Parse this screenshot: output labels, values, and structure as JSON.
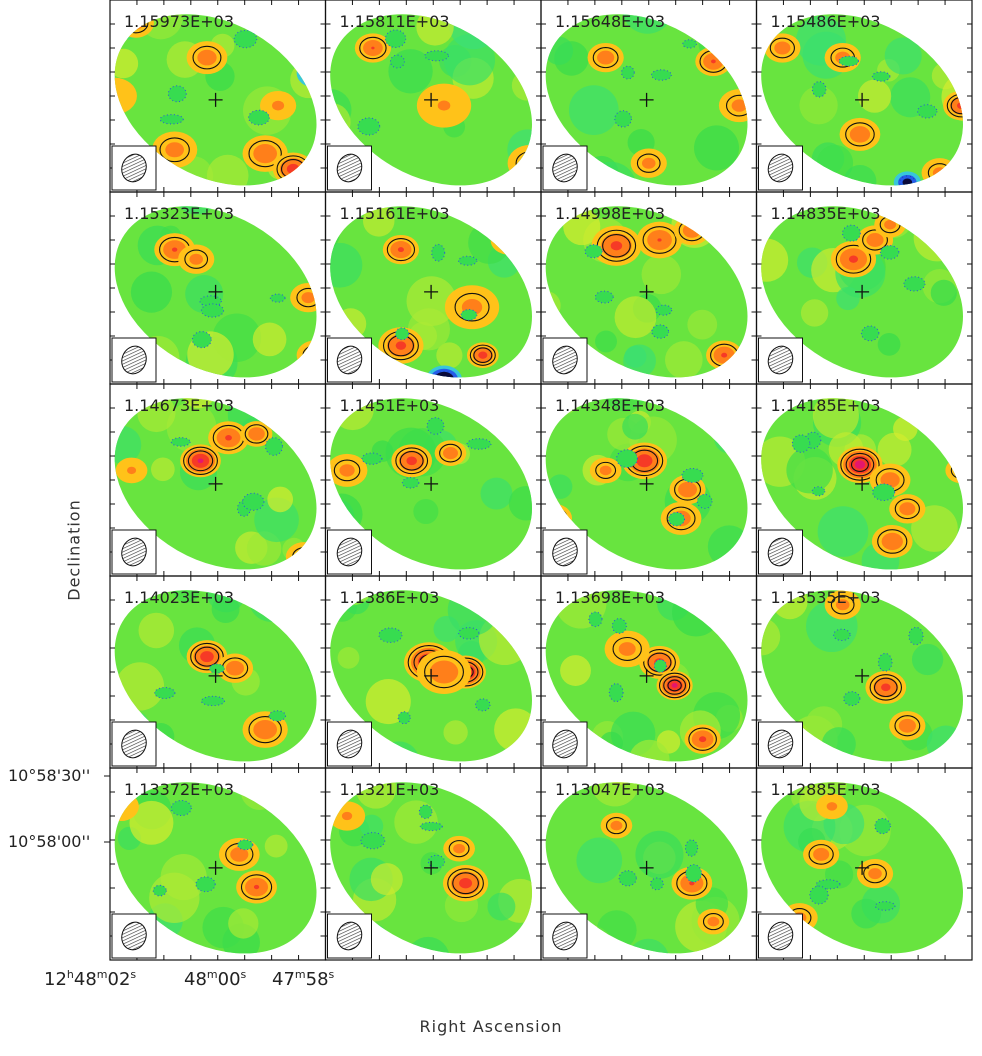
{
  "chart_data": {
    "type": "heatmap",
    "xlabel": "Right Ascension",
    "ylabel": "Declination",
    "grid_layout": {
      "rows": 5,
      "cols": 4
    },
    "x_tick_labels": [
      {
        "h": "12",
        "hu": "h",
        "m": "48",
        "mu": "m",
        "s": "02",
        "su": "s"
      },
      {
        "h": "",
        "hu": "",
        "m": "48",
        "mu": "m",
        "s": "00",
        "su": "s"
      },
      {
        "h": "",
        "hu": "",
        "m": "47",
        "mu": "m",
        "s": "58",
        "su": "s"
      }
    ],
    "y_tick_labels": [
      "10°58'30''",
      "10°58'00''"
    ],
    "colorscale": [
      "#0a0a3a",
      "#2346e6",
      "#2fb0f0",
      "#46e6b8",
      "#36dc4c",
      "#74e63c",
      "#d8ec2e",
      "#ffd21a",
      "#ff9418",
      "#ff4a1e",
      "#e0143a",
      "#f01ed6",
      "#ffffff"
    ],
    "panels": [
      {
        "label": "1.15973E+03",
        "blobs": [
          [
            0.72,
            0.8,
            1.5,
            0.1
          ],
          [
            0.85,
            0.88,
            2.3,
            0.09
          ],
          [
            0.45,
            0.3,
            1.3,
            0.09
          ],
          [
            0.3,
            0.78,
            1.1,
            0.1
          ],
          [
            0.02,
            0.5,
            0.6,
            0.1
          ],
          [
            0.95,
            0.38,
            -3.2,
            0.08
          ],
          [
            0.78,
            0.55,
            0.9,
            0.08
          ],
          [
            0.12,
            0.12,
            1.2,
            0.08
          ]
        ]
      },
      {
        "label": "1.15811E+03",
        "blobs": [
          [
            0.22,
            0.25,
            1.6,
            0.08
          ],
          [
            0.55,
            0.55,
            0.7,
            0.12
          ],
          [
            0.95,
            0.85,
            1.0,
            0.1
          ]
        ]
      },
      {
        "label": "1.15648E+03",
        "blobs": [
          [
            0.3,
            0.3,
            1.3,
            0.08
          ],
          [
            0.8,
            0.32,
            1.7,
            0.08
          ],
          [
            0.92,
            0.55,
            1.0,
            0.09
          ],
          [
            0.5,
            0.85,
            1.0,
            0.08
          ]
        ]
      },
      {
        "label": "1.15486E+03",
        "blobs": [
          [
            0.12,
            0.25,
            1.2,
            0.08
          ],
          [
            0.4,
            0.3,
            1.1,
            0.08
          ],
          [
            0.48,
            0.7,
            1.4,
            0.09
          ],
          [
            0.95,
            0.55,
            2.0,
            0.08
          ],
          [
            0.85,
            0.9,
            1.0,
            0.08
          ],
          [
            0.7,
            0.95,
            -2.5,
            0.06
          ]
        ]
      },
      {
        "label": "1.15323E+03",
        "blobs": [
          [
            0.3,
            0.3,
            1.7,
            0.09
          ],
          [
            0.4,
            0.35,
            1.0,
            0.08
          ],
          [
            0.92,
            0.55,
            1.0,
            0.08
          ],
          [
            0.95,
            0.85,
            1.1,
            0.08
          ]
        ]
      },
      {
        "label": "1.15161E+03",
        "blobs": [
          [
            0.35,
            0.3,
            1.8,
            0.08
          ],
          [
            0.35,
            0.8,
            2.0,
            0.1
          ],
          [
            0.68,
            0.6,
            1.0,
            0.12
          ],
          [
            0.73,
            0.85,
            2.2,
            0.07
          ],
          [
            0.55,
            0.98,
            -4.0,
            0.08
          ],
          [
            0.85,
            0.25,
            1.0,
            0.08
          ]
        ]
      },
      {
        "label": "1.14998E+03",
        "blobs": [
          [
            0.35,
            0.28,
            2.0,
            0.11
          ],
          [
            0.55,
            0.25,
            1.6,
            0.1
          ],
          [
            0.7,
            0.2,
            1.4,
            0.08
          ],
          [
            0.85,
            0.85,
            1.8,
            0.08
          ]
        ]
      },
      {
        "label": "1.14835E+03",
        "blobs": [
          [
            0.45,
            0.35,
            1.9,
            0.1
          ],
          [
            0.55,
            0.25,
            1.3,
            0.08
          ],
          [
            0.62,
            0.17,
            1.0,
            0.07
          ]
        ]
      },
      {
        "label": "1.14673E+03",
        "blobs": [
          [
            0.42,
            0.4,
            2.9,
            0.09
          ],
          [
            0.55,
            0.28,
            1.8,
            0.09
          ],
          [
            0.68,
            0.26,
            1.5,
            0.07
          ],
          [
            0.1,
            0.45,
            0.8,
            0.07
          ],
          [
            0.9,
            0.9,
            1.0,
            0.08
          ]
        ]
      },
      {
        "label": "1.1451E+03",
        "blobs": [
          [
            0.4,
            0.4,
            2.1,
            0.09
          ],
          [
            0.58,
            0.36,
            1.3,
            0.07
          ],
          [
            0.1,
            0.45,
            1.0,
            0.09
          ]
        ]
      },
      {
        "label": "1.14348E+03",
        "blobs": [
          [
            0.48,
            0.4,
            2.5,
            0.1
          ],
          [
            0.68,
            0.55,
            1.5,
            0.08
          ],
          [
            0.65,
            0.7,
            1.3,
            0.09
          ],
          [
            0.06,
            0.7,
            1.6,
            0.08
          ],
          [
            0.3,
            0.45,
            1.0,
            0.07
          ]
        ]
      },
      {
        "label": "1.14185E+03",
        "blobs": [
          [
            0.48,
            0.42,
            3.3,
            0.1
          ],
          [
            0.62,
            0.5,
            1.3,
            0.09
          ],
          [
            0.7,
            0.65,
            1.2,
            0.08
          ],
          [
            0.63,
            0.82,
            1.5,
            0.09
          ],
          [
            0.95,
            0.45,
            1.0,
            0.07
          ]
        ]
      },
      {
        "label": "1.14023E+03",
        "blobs": [
          [
            0.45,
            0.42,
            2.4,
            0.09
          ],
          [
            0.58,
            0.48,
            1.4,
            0.08
          ],
          [
            0.72,
            0.8,
            1.5,
            0.1
          ],
          [
            0.85,
            0.08,
            1.0,
            0.06
          ]
        ]
      },
      {
        "label": "1.1386E+03",
        "blobs": [
          [
            0.48,
            0.45,
            3.0,
            0.11
          ],
          [
            0.65,
            0.5,
            3.3,
            0.09
          ],
          [
            0.55,
            0.5,
            1.5,
            0.12
          ]
        ]
      },
      {
        "label": "1.13698E+03",
        "blobs": [
          [
            0.55,
            0.45,
            2.1,
            0.09
          ],
          [
            0.62,
            0.57,
            3.0,
            0.08
          ],
          [
            0.75,
            0.85,
            1.9,
            0.08
          ],
          [
            0.4,
            0.38,
            1.0,
            0.1
          ]
        ]
      },
      {
        "label": "1.13535E+03",
        "blobs": [
          [
            0.6,
            0.58,
            2.0,
            0.09
          ],
          [
            0.7,
            0.78,
            1.3,
            0.08
          ],
          [
            0.4,
            0.15,
            1.0,
            0.08
          ]
        ]
      },
      {
        "label": "1.13372E+03",
        "blobs": [
          [
            0.6,
            0.45,
            1.2,
            0.09
          ],
          [
            0.68,
            0.62,
            1.7,
            0.09
          ],
          [
            0.05,
            0.2,
            0.8,
            0.08
          ]
        ]
      },
      {
        "label": "1.1321E+03",
        "blobs": [
          [
            0.65,
            0.6,
            2.2,
            0.1
          ],
          [
            0.62,
            0.42,
            1.0,
            0.07
          ],
          [
            0.1,
            0.25,
            0.8,
            0.08
          ],
          [
            0.85,
            0.12,
            1.0,
            0.06
          ]
        ]
      },
      {
        "label": "1.13047E+03",
        "blobs": [
          [
            0.7,
            0.6,
            1.7,
            0.09
          ],
          [
            0.35,
            0.3,
            1.0,
            0.07
          ],
          [
            0.8,
            0.8,
            1.0,
            0.07
          ]
        ]
      },
      {
        "label": "1.12885E+03",
        "blobs": [
          [
            0.3,
            0.45,
            1.2,
            0.08
          ],
          [
            0.55,
            0.55,
            1.0,
            0.08
          ],
          [
            0.98,
            0.4,
            1.0,
            0.07
          ],
          [
            0.35,
            0.2,
            0.9,
            0.07
          ],
          [
            0.2,
            0.78,
            1.0,
            0.08
          ]
        ]
      }
    ]
  }
}
